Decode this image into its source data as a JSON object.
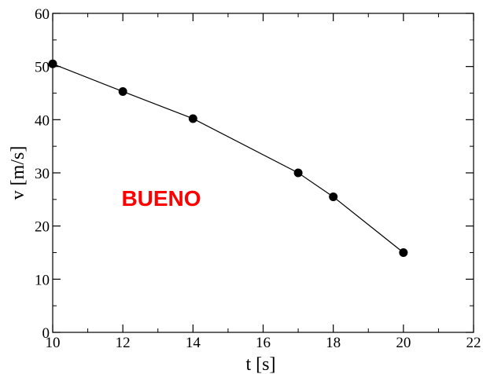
{
  "chart_data": {
    "type": "line",
    "xlabel": "t [s]",
    "ylabel": "v [m/s]",
    "xlim": [
      10,
      22
    ],
    "ylim": [
      0,
      60
    ],
    "x_ticks": [
      10,
      12,
      14,
      16,
      18,
      20,
      22
    ],
    "y_ticks": [
      0,
      10,
      20,
      30,
      40,
      50,
      60
    ],
    "x_tick_labels": [
      "10",
      "12",
      "14",
      "16",
      "18",
      "20",
      "22"
    ],
    "y_tick_labels": [
      "0",
      "10",
      "20",
      "30",
      "40",
      "50",
      "60"
    ],
    "x_minor_step": 1,
    "y_minor_step": 5,
    "grid": false,
    "legend": "none",
    "series": [
      {
        "x": [
          10,
          12,
          14,
          17,
          18,
          20
        ],
        "y": [
          50.5,
          45.3,
          40.2,
          30.0,
          25.5,
          15.0
        ],
        "color": "#000000",
        "marker": "circle"
      }
    ],
    "annotation": {
      "text": "BUENO",
      "color": "#ff0000"
    }
  }
}
